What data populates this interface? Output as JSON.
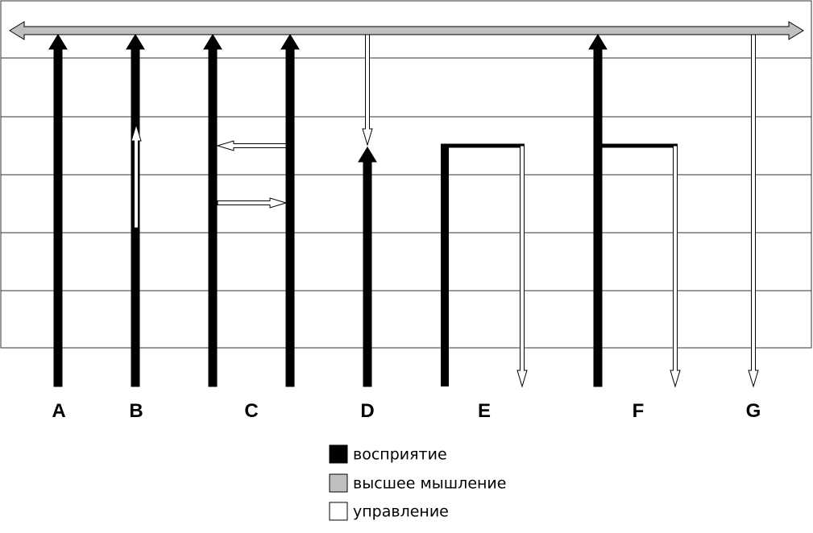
{
  "columns": [
    "A",
    "B",
    "C",
    "D",
    "E",
    "F",
    "G"
  ],
  "legend": [
    "восприятие",
    "высшее мышление",
    "управление"
  ]
}
